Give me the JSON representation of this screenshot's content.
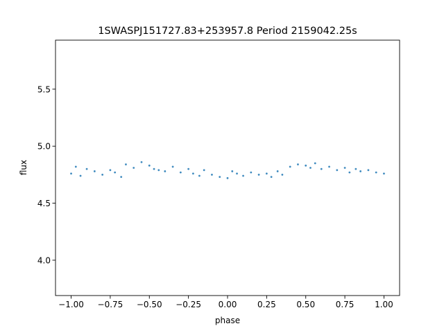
{
  "chart_data": {
    "type": "scatter",
    "title": "1SWASPJ151727.83+253957.8 Period 2159042.25s",
    "xlabel": "phase",
    "ylabel": "flux",
    "xlim": [
      -1.1,
      1.1
    ],
    "ylim": [
      3.69,
      5.93
    ],
    "xticks": [
      -1.0,
      -0.75,
      -0.5,
      -0.25,
      0.0,
      0.25,
      0.5,
      0.75,
      1.0
    ],
    "xtick_labels": [
      "−1.00",
      "−0.75",
      "−0.50",
      "−0.25",
      "0.00",
      "0.25",
      "0.50",
      "0.75",
      "1.00"
    ],
    "yticks": [
      4.0,
      4.5,
      5.0,
      5.5
    ],
    "ytick_labels": [
      "4.0",
      "4.5",
      "5.0",
      "5.5"
    ],
    "grid": false,
    "legend": "none",
    "marker_color": "#1f77b4",
    "series": [
      {
        "x": [
          -1.0,
          -0.97,
          -0.94,
          -0.9,
          -0.85,
          -0.8,
          -0.75,
          -0.72,
          -0.68,
          -0.65,
          -0.6,
          -0.55,
          -0.5,
          -0.47,
          -0.44,
          -0.4,
          -0.35,
          -0.3,
          -0.25,
          -0.22,
          -0.18,
          -0.15,
          -0.1,
          -0.05,
          0.0,
          0.03,
          0.06,
          0.1,
          0.15,
          0.2,
          0.25,
          0.28,
          0.32,
          0.35,
          0.4,
          0.45,
          0.5,
          0.53,
          0.56,
          0.6,
          0.65,
          0.7,
          0.75,
          0.78,
          0.82,
          0.85,
          0.9,
          0.95,
          1.0
        ],
        "y": [
          4.76,
          4.82,
          4.74,
          4.8,
          4.78,
          4.75,
          4.79,
          4.77,
          4.73,
          4.84,
          4.81,
          4.86,
          4.83,
          4.8,
          4.79,
          4.78,
          4.82,
          4.77,
          4.8,
          4.76,
          4.74,
          4.79,
          4.75,
          4.73,
          4.72,
          4.78,
          4.76,
          4.74,
          4.77,
          4.75,
          4.76,
          4.73,
          4.78,
          4.75,
          4.82,
          4.84,
          4.83,
          4.81,
          4.85,
          4.8,
          4.82,
          4.79,
          4.81,
          4.77,
          4.8,
          4.78,
          4.79,
          4.77,
          4.76
        ]
      }
    ]
  }
}
